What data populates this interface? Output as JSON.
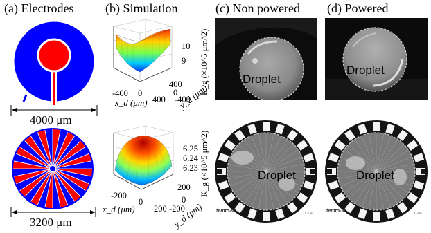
{
  "headers": {
    "a": "(a) Electrodes",
    "b": "(b) Simulation",
    "c": "(c) Non powered",
    "d": "(d) Powered"
  },
  "electrodes": {
    "top_scale": "4000 μm",
    "bottom_scale": "3200 μm",
    "colors": {
      "blue": "#0000ff",
      "red": "#ff0000"
    }
  },
  "simulation": {
    "top": {
      "z_ticks": [
        "10",
        "9"
      ],
      "x_ticks": [
        "-400",
        "0",
        "400"
      ],
      "y_ticks": [
        "400",
        "0",
        "-400"
      ],
      "xlabel": "x_d (μm)",
      "ylabel": "y_d (μm)"
    },
    "bottom": {
      "z_ticks": [
        "6.25",
        "6.24",
        "6.23"
      ],
      "x_ticks": [
        "-200",
        "0",
        "200"
      ],
      "y_ticks": [
        "200",
        "0",
        "-200"
      ],
      "xlabel": "x_d (μm)",
      "ylabel": "y_d (μm)"
    }
  },
  "photos": {
    "kg_label": "K_g (×10^5 μm^2)",
    "droplet_label": "Droplet",
    "logo_text": "femto-st",
    "corner_text": "C-04"
  }
}
